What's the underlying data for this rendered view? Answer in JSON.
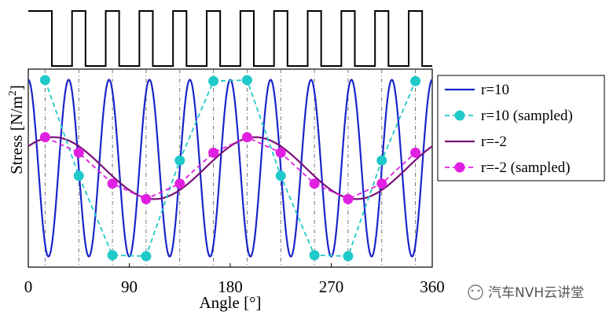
{
  "chart_data": {
    "type": "line",
    "xlabel": "Angle [°]",
    "ylabel_main": "Stress [N/m",
    "ylabel_sup": "2",
    "ylabel_end": "]",
    "xlim": [
      0,
      360
    ],
    "ylim": [
      -1.12,
      1.12
    ],
    "xticks": [
      0,
      90,
      180,
      270,
      360
    ],
    "xtick_labels": [
      "0",
      "90",
      "180",
      "270",
      "360"
    ],
    "sample_angles": [
      15,
      45,
      75,
      105,
      135,
      165,
      195,
      225,
      255,
      285,
      315,
      345
    ],
    "square_wave": {
      "period_deg": 30,
      "high_start_deg": 9,
      "high_end_deg": 21,
      "description": "sampling pulse train"
    },
    "series": [
      {
        "name": "r=10",
        "style": "solid",
        "color": "#1a25c9",
        "harmonic": 10,
        "amplitude": 1.0,
        "phase_deg": 0
      },
      {
        "name": "r=10 (sampled)",
        "style": "dashed-marker",
        "color": "#1fc9c9",
        "harmonic": 10,
        "amplitude": 1.0,
        "values": [
          0.996,
          -0.087,
          -0.985,
          -0.996,
          0.087,
          0.985,
          0.996,
          -0.087,
          -0.985,
          -0.996,
          0.087,
          0.985
        ]
      },
      {
        "name": "r=-2",
        "style": "solid",
        "color": "#7a1078",
        "harmonic": -2,
        "amplitude": 0.35,
        "phase_deg": 45
      },
      {
        "name": "r=-2 (sampled)",
        "style": "dashed-marker",
        "color": "#e020e0",
        "harmonic": -2,
        "amplitude": 0.35,
        "values": [
          0.35,
          0.175,
          -0.175,
          -0.35,
          -0.175,
          0.175,
          0.35,
          0.175,
          -0.175,
          -0.35,
          -0.175,
          0.175
        ]
      }
    ],
    "legend_position": "right",
    "legend_entries": [
      "r=10",
      "r=10 (sampled)",
      "r=-2",
      "r=-2 (sampled)"
    ],
    "grid": false
  },
  "watermark": {
    "text": "汽车NVH云讲堂"
  }
}
